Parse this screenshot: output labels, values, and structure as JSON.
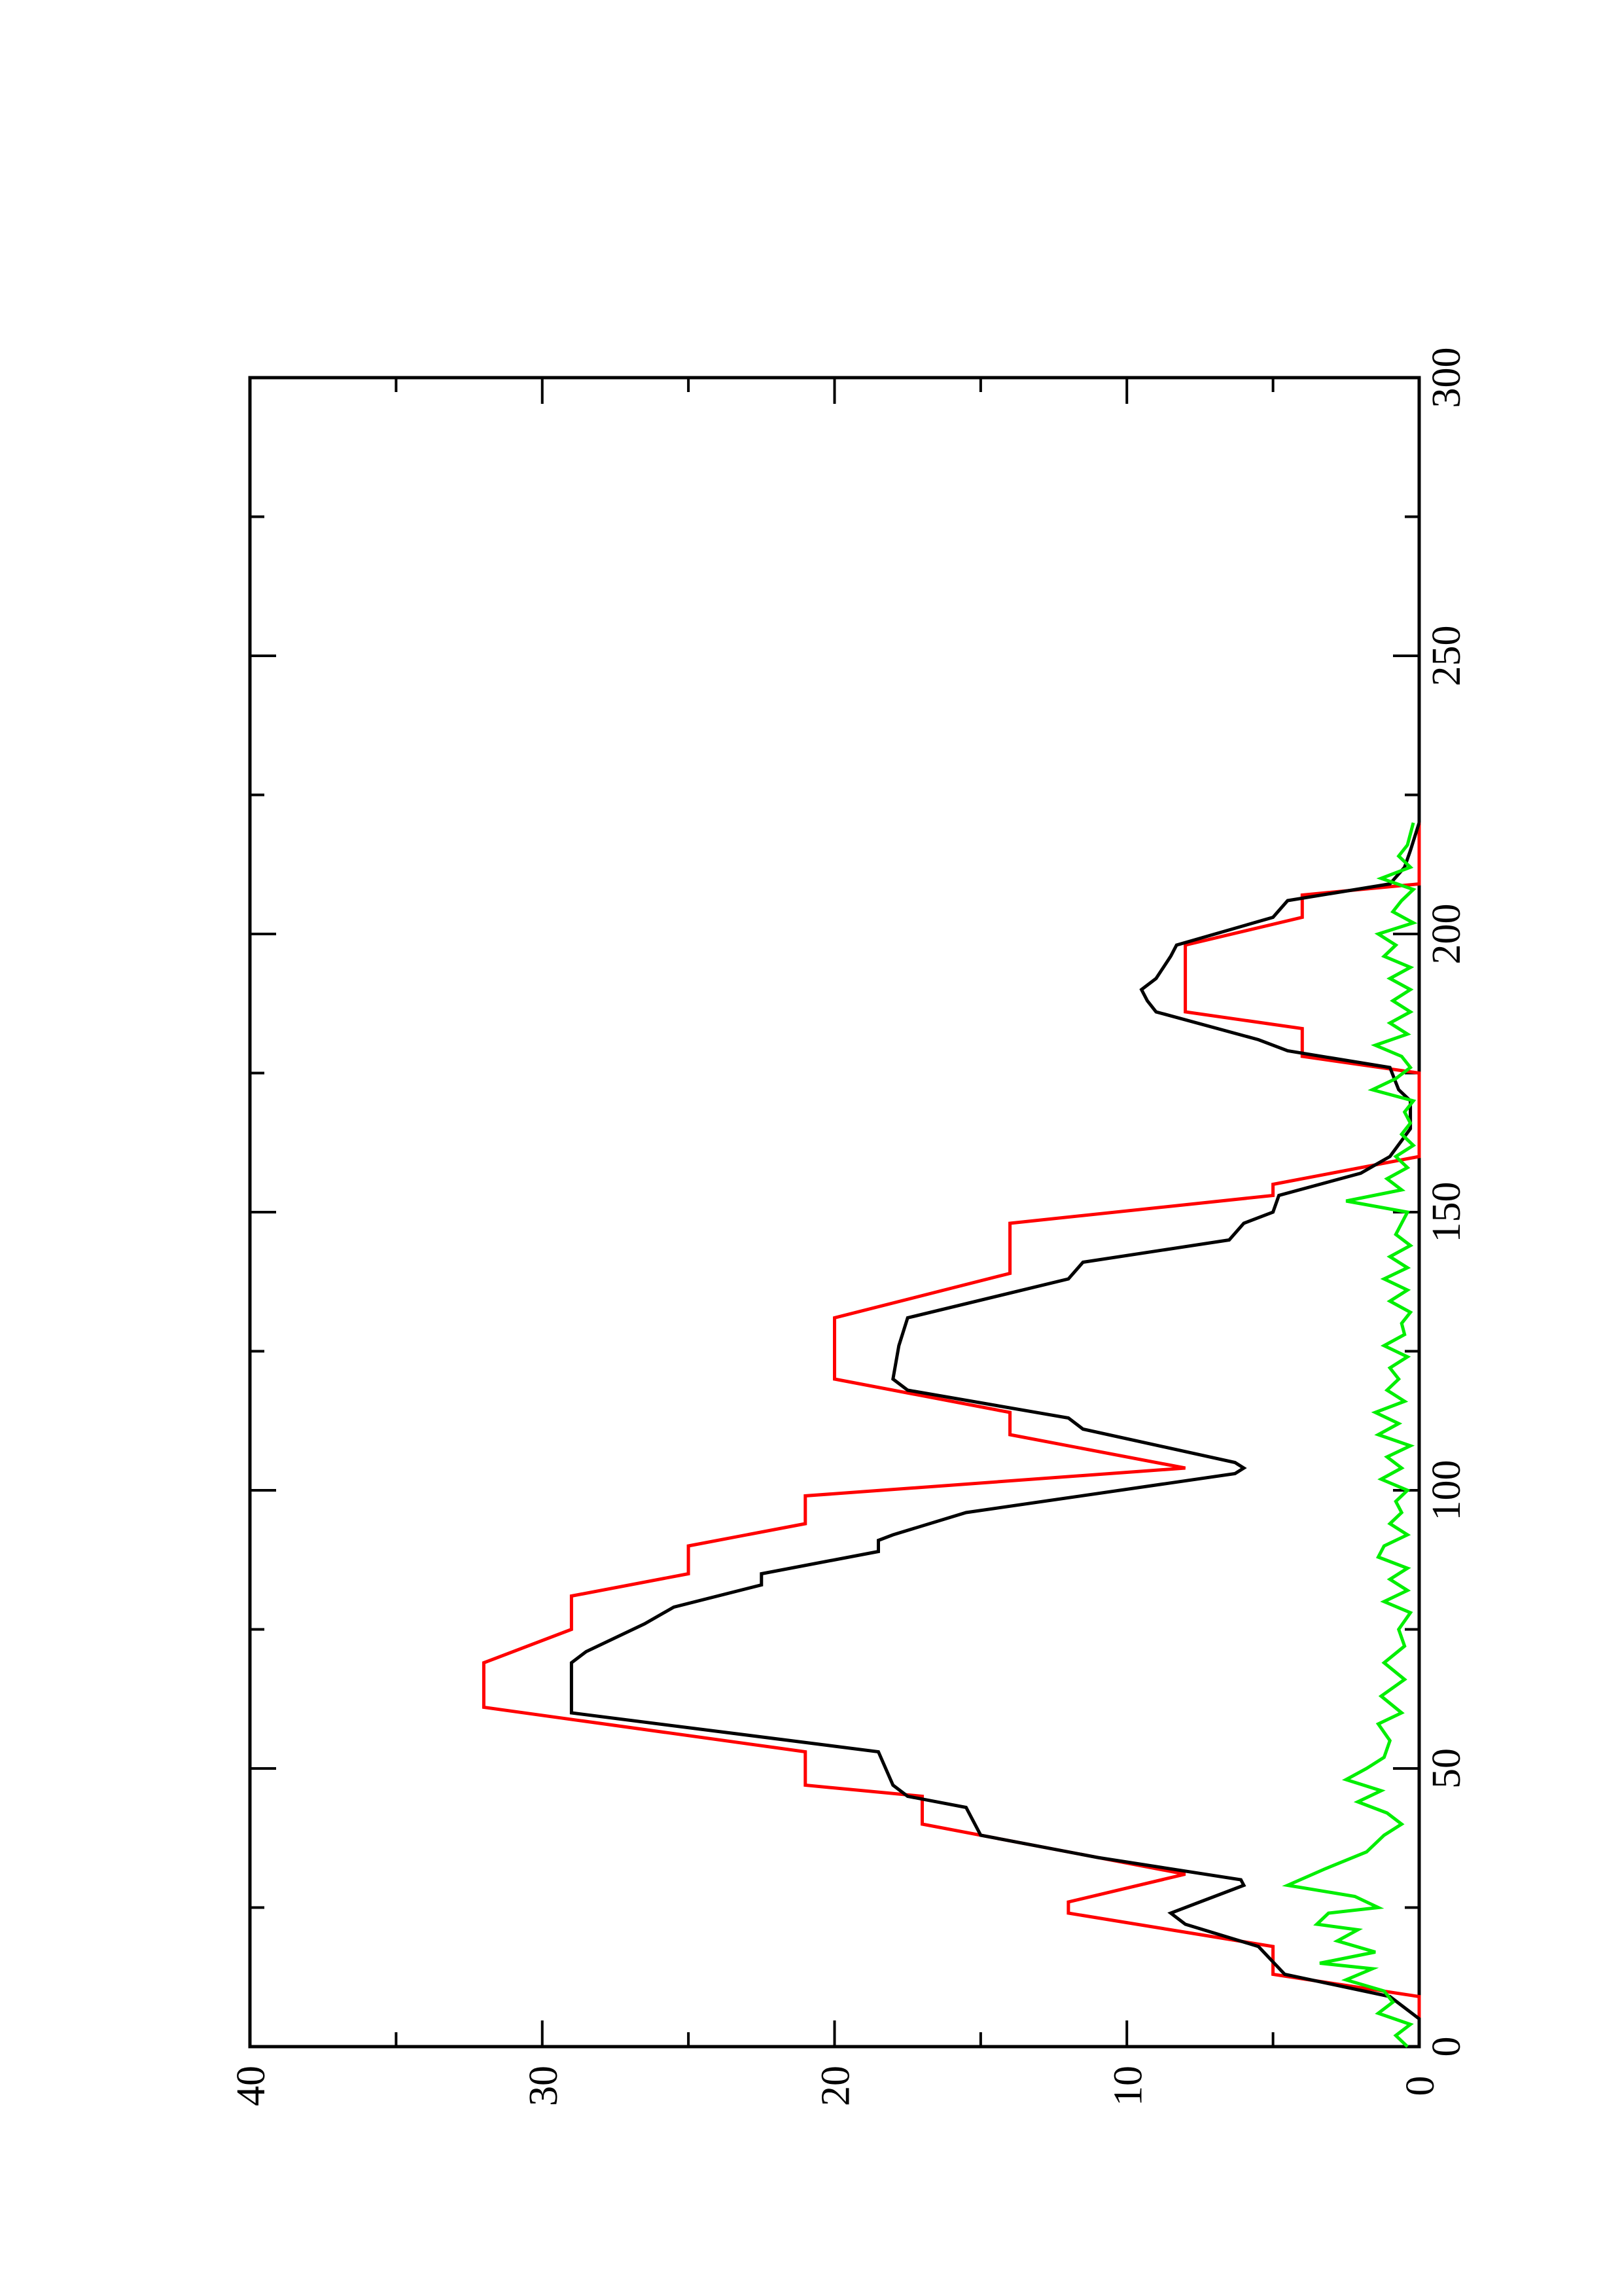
{
  "chart_data": {
    "type": "line",
    "orientation": "rotated-90-ccw",
    "title": "",
    "xlabel": "",
    "ylabel": "",
    "xlim": [
      0,
      300
    ],
    "ylim": [
      0,
      40
    ],
    "x_ticks": [
      "0",
      "50",
      "100",
      "150",
      "200",
      "250",
      "300"
    ],
    "y_ticks": [
      "0",
      "10",
      "20",
      "30",
      "40"
    ],
    "x_minor_step": 25,
    "y_minor_step": 5,
    "grid": false,
    "legend": "none",
    "series": [
      {
        "color": "#ff0000",
        "style": "step-ramp",
        "points": [
          [
            0,
            0
          ],
          [
            9,
            0
          ],
          [
            13,
            5
          ],
          [
            18,
            5
          ],
          [
            24,
            12
          ],
          [
            26,
            12
          ],
          [
            31,
            8
          ],
          [
            40,
            17
          ],
          [
            45,
            17
          ],
          [
            47,
            21
          ],
          [
            53,
            21
          ],
          [
            61,
            32
          ],
          [
            69,
            32
          ],
          [
            75,
            29
          ],
          [
            81,
            29
          ],
          [
            85,
            25
          ],
          [
            90,
            25
          ],
          [
            94,
            21
          ],
          [
            99,
            21
          ],
          [
            104,
            8
          ],
          [
            110,
            14
          ],
          [
            114,
            14
          ],
          [
            120,
            20
          ],
          [
            131,
            20
          ],
          [
            139,
            14
          ],
          [
            148,
            14
          ],
          [
            153,
            5
          ],
          [
            155,
            5
          ],
          [
            160,
            0
          ],
          [
            175,
            0
          ],
          [
            178,
            4
          ],
          [
            183,
            4
          ],
          [
            186,
            8
          ],
          [
            198,
            8
          ],
          [
            203,
            4
          ],
          [
            207,
            4
          ],
          [
            209,
            0
          ],
          [
            220,
            0
          ]
        ]
      },
      {
        "color": "#000000",
        "style": "line",
        "points": [
          [
            0,
            0
          ],
          [
            5,
            0
          ],
          [
            9,
            1
          ],
          [
            13,
            4.6
          ],
          [
            18,
            5.5
          ],
          [
            22,
            8
          ],
          [
            24,
            8.5
          ],
          [
            26,
            7.5
          ],
          [
            29,
            6
          ],
          [
            30,
            6.1
          ],
          [
            34,
            11
          ],
          [
            38,
            15
          ],
          [
            43,
            15.5
          ],
          [
            45,
            17.5
          ],
          [
            47,
            18
          ],
          [
            53,
            18.5
          ],
          [
            60,
            29
          ],
          [
            69,
            29
          ],
          [
            71,
            28.5
          ],
          [
            76,
            26.5
          ],
          [
            79,
            25.5
          ],
          [
            83,
            22.5
          ],
          [
            85,
            22.5
          ],
          [
            89,
            18.5
          ],
          [
            91,
            18.5
          ],
          [
            92,
            18
          ],
          [
            96,
            15.5
          ],
          [
            103,
            6.3
          ],
          [
            104,
            6
          ],
          [
            105,
            6.3
          ],
          [
            111,
            11.5
          ],
          [
            113,
            12
          ],
          [
            118,
            17.5
          ],
          [
            120,
            18
          ],
          [
            126,
            17.8
          ],
          [
            131,
            17.5
          ],
          [
            138,
            12
          ],
          [
            141,
            11.5
          ],
          [
            145,
            6.5
          ],
          [
            148,
            6
          ],
          [
            150,
            5
          ],
          [
            153,
            4.8
          ],
          [
            157,
            2
          ],
          [
            160,
            1
          ],
          [
            165,
            0.3
          ],
          [
            170,
            0.3
          ],
          [
            172,
            0.7
          ],
          [
            176,
            1
          ],
          [
            179,
            4.5
          ],
          [
            181,
            5.5
          ],
          [
            186,
            9
          ],
          [
            188,
            9.3
          ],
          [
            190,
            9.5
          ],
          [
            192,
            9
          ],
          [
            196,
            8.5
          ],
          [
            198,
            8.3
          ],
          [
            203,
            5
          ],
          [
            206,
            4.5
          ],
          [
            209,
            1
          ],
          [
            212,
            0.5
          ],
          [
            215,
            0.3
          ],
          [
            220,
            0
          ]
        ]
      },
      {
        "color": "#00ee00",
        "style": "line",
        "points": [
          [
            0,
            0.4
          ],
          [
            2,
            0.8
          ],
          [
            4,
            0.3
          ],
          [
            6,
            1.4
          ],
          [
            8,
            0.9
          ],
          [
            10,
            1.2
          ],
          [
            12,
            2.5
          ],
          [
            14,
            1.6
          ],
          [
            15,
            3.4
          ],
          [
            17,
            1.5
          ],
          [
            19,
            2.8
          ],
          [
            21,
            2.1
          ],
          [
            22,
            3.5
          ],
          [
            24,
            3.1
          ],
          [
            25,
            1.4
          ],
          [
            27,
            2.2
          ],
          [
            29,
            4.5
          ],
          [
            32,
            3.2
          ],
          [
            35,
            1.8
          ],
          [
            38,
            1.2
          ],
          [
            40,
            0.6
          ],
          [
            42,
            1.1
          ],
          [
            44,
            2.1
          ],
          [
            46,
            1.3
          ],
          [
            48,
            2.5
          ],
          [
            50,
            1.8
          ],
          [
            52,
            1.2
          ],
          [
            55,
            1.0
          ],
          [
            58,
            1.4
          ],
          [
            60,
            0.6
          ],
          [
            63,
            1.3
          ],
          [
            66,
            0.5
          ],
          [
            69,
            1.2
          ],
          [
            72,
            0.5
          ],
          [
            75,
            0.7
          ],
          [
            78,
            0.3
          ],
          [
            80,
            1.2
          ],
          [
            82,
            0.4
          ],
          [
            84,
            1.0
          ],
          [
            86,
            0.4
          ],
          [
            88,
            1.4
          ],
          [
            90,
            1.2
          ],
          [
            92,
            0.4
          ],
          [
            94,
            1.0
          ],
          [
            96,
            0.6
          ],
          [
            98,
            0.8
          ],
          [
            100,
            0.4
          ],
          [
            102,
            1.3
          ],
          [
            104,
            0.6
          ],
          [
            106,
            1.1
          ],
          [
            108,
            0.3
          ],
          [
            110,
            1.4
          ],
          [
            112,
            0.7
          ],
          [
            114,
            1.5
          ],
          [
            116,
            0.5
          ],
          [
            118,
            1.1
          ],
          [
            120,
            0.7
          ],
          [
            122,
            1.0
          ],
          [
            124,
            0.4
          ],
          [
            126,
            1.2
          ],
          [
            128,
            0.5
          ],
          [
            130,
            0.6
          ],
          [
            132,
            0.3
          ],
          [
            134,
            1.0
          ],
          [
            136,
            0.4
          ],
          [
            138,
            1.2
          ],
          [
            140,
            0.4
          ],
          [
            142,
            1.0
          ],
          [
            144,
            0.3
          ],
          [
            146,
            0.8
          ],
          [
            148,
            0.6
          ],
          [
            150,
            0.4
          ],
          [
            152,
            2.5
          ],
          [
            154,
            0.6
          ],
          [
            156,
            1.1
          ],
          [
            158,
            0.4
          ],
          [
            160,
            0.8
          ],
          [
            162,
            0.2
          ],
          [
            164,
            0.6
          ],
          [
            166,
            0.3
          ],
          [
            168,
            0.5
          ],
          [
            170,
            0.2
          ],
          [
            172,
            1.6
          ],
          [
            174,
            0.8
          ],
          [
            176,
            0.3
          ],
          [
            178,
            0.6
          ],
          [
            180,
            1.5
          ],
          [
            182,
            0.4
          ],
          [
            184,
            1.0
          ],
          [
            186,
            0.3
          ],
          [
            188,
            0.9
          ],
          [
            190,
            0.3
          ],
          [
            192,
            1.0
          ],
          [
            194,
            0.3
          ],
          [
            196,
            1.2
          ],
          [
            198,
            0.8
          ],
          [
            200,
            1.4
          ],
          [
            202,
            0.2
          ],
          [
            204,
            0.9
          ],
          [
            206,
            0.6
          ],
          [
            208,
            0.2
          ],
          [
            210,
            1.3
          ],
          [
            212,
            0.3
          ],
          [
            214,
            0.7
          ],
          [
            216,
            0.4
          ],
          [
            218,
            0.3
          ],
          [
            220,
            0.2
          ]
        ]
      }
    ]
  }
}
